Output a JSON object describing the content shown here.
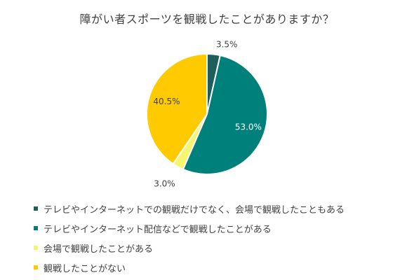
{
  "chart_data": {
    "type": "pie",
    "title": "障がい者スポーツを観戦したことがありますか？",
    "categories": [
      "テレビやインターネットでの観戦だけでなく、会場で観戦したこともある",
      "テレビやインターネット配信などで観戦したことがある",
      "会場で観戦したことがある",
      "観戦したことがない"
    ],
    "values": [
      3.5,
      53.0,
      3.0,
      40.5
    ],
    "value_labels": [
      "3.5%",
      "53.0%",
      "3.0%",
      "40.5%"
    ],
    "colors": [
      "#1f5f5b",
      "#00807a",
      "#f5f56e",
      "#ffca00"
    ],
    "legend_position": "bottom-left",
    "start_angle": "12 o'clock, clockwise"
  }
}
